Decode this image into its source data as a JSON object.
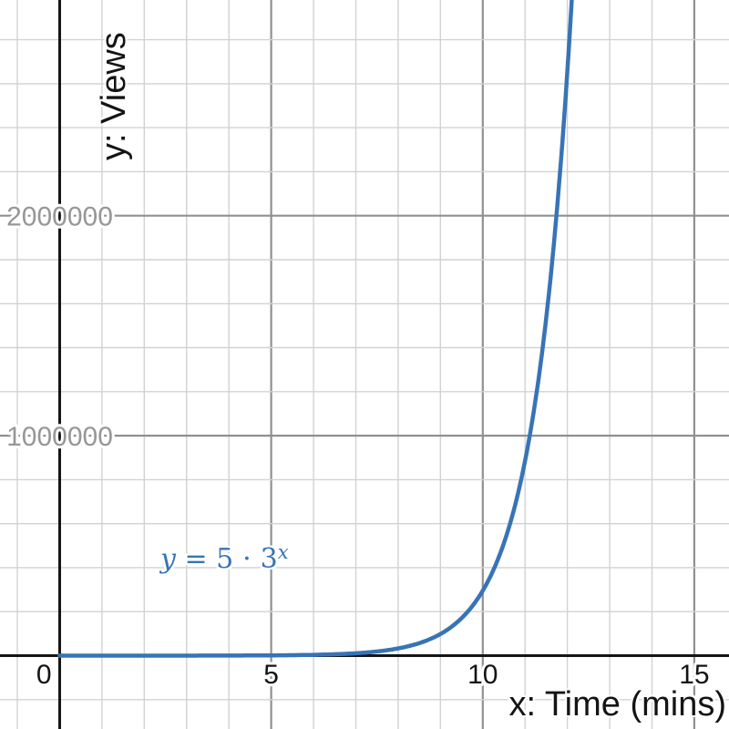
{
  "page": {
    "background": "#ffffff"
  },
  "chart_data": {
    "type": "line",
    "title": "",
    "equation": "y = 5 ⋅ 3^x",
    "function": {
      "coefficient": 5,
      "base": 3,
      "domain_min": 0
    },
    "x": [
      0,
      1,
      2,
      3,
      4,
      5,
      6,
      7,
      8,
      9,
      10,
      11,
      12
    ],
    "y": [
      5,
      15,
      45,
      135,
      405,
      1215,
      3645,
      10935,
      32805,
      98415,
      295245,
      885735,
      2657205
    ],
    "xlabel": "x: Time (mins)",
    "ylabel": "y: Views",
    "x_ticks": [
      0,
      5,
      10,
      15
    ],
    "y_ticks": [
      1000000,
      2000000
    ],
    "y_tick_labels": [
      "1000000",
      "2000000"
    ],
    "xlim": [
      -1.41,
      15.82
    ],
    "ylim": [
      -333500,
      2980500
    ],
    "grid": {
      "on": true,
      "x_minor_step": 1,
      "x_major_step": 5,
      "y_minor_step": 200000,
      "y_major_step": 1000000
    },
    "legend_position": "none",
    "colors": {
      "curve": "#3874b5",
      "axis": "#151515",
      "grid_minor": "#d2d2d2",
      "grid_major": "#909090",
      "x_tick_label": "#141414",
      "y_tick_label": "#979797",
      "equation_label": "#3874b5"
    },
    "stroke": {
      "curve_width": 4.5,
      "axis_width": 3,
      "grid_major_width": 2.2,
      "grid_minor_width": 1.4
    }
  },
  "equation_label": {
    "lhs": "y",
    "mid": " = 5 ⋅ 3",
    "exponent": "x"
  }
}
